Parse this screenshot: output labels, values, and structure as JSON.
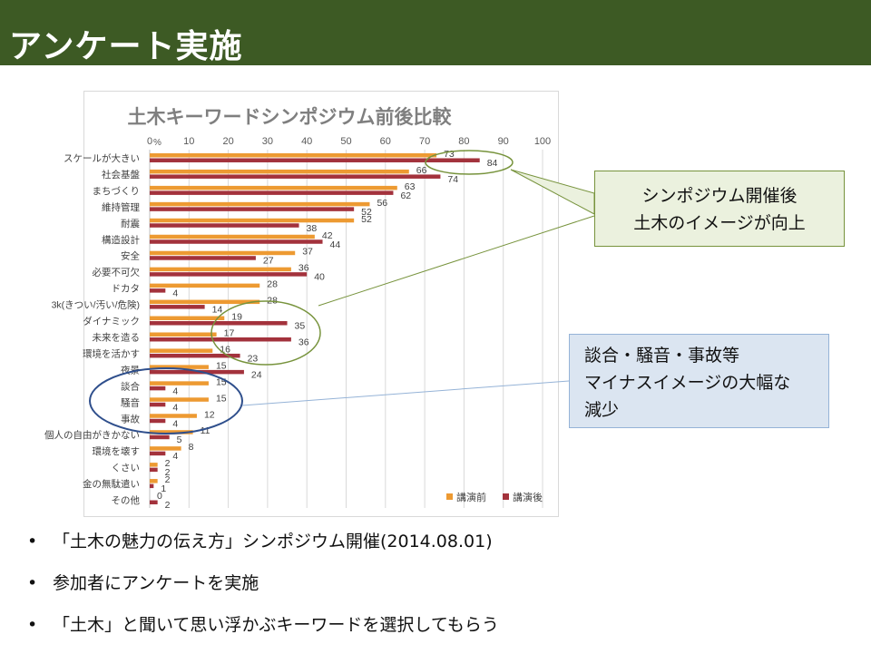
{
  "header": {
    "title": "アンケート実施"
  },
  "chart_data": {
    "type": "bar",
    "orientation": "horizontal",
    "title": "土木キーワードシンポジウム前後比較",
    "x_unit": "%",
    "xlim": [
      0,
      100
    ],
    "x_ticks": [
      "0",
      "10",
      "20",
      "30",
      "40",
      "50",
      "60",
      "70",
      "80",
      "90",
      "100"
    ],
    "grid": true,
    "legend_position": "bottom-right",
    "categories": [
      "スケールが大きい",
      "社会基盤",
      "まちづくり",
      "維持管理",
      "耐震",
      "構造設計",
      "安全",
      "必要不可欠",
      "ドカタ",
      "3k(きつい/汚い/危険)",
      "ダイナミック",
      "未来を造る",
      "環境を活かす",
      "夜景",
      "談合",
      "騒音",
      "事故",
      "個人の自由がきかない",
      "環境を壊す",
      "くさい",
      "金の無駄遣い",
      "その他"
    ],
    "series": [
      {
        "name": "講演前",
        "color": "#ed9a32",
        "values": [
          73,
          66,
          63,
          56,
          52,
          42,
          37,
          36,
          28,
          28,
          19,
          17,
          16,
          15,
          15,
          15,
          12,
          11,
          8,
          2,
          2,
          0
        ]
      },
      {
        "name": "講演後",
        "color": "#a3323c",
        "values": [
          84,
          74,
          62,
          52,
          38,
          44,
          27,
          40,
          4,
          14,
          35,
          36,
          23,
          24,
          4,
          4,
          4,
          5,
          4,
          2,
          1,
          2
        ]
      }
    ]
  },
  "callouts": {
    "positive": {
      "line1": "シンポジウム開催後",
      "line2": "土木のイメージが向上",
      "color": "#77933c"
    },
    "negative": {
      "line1": "談合・騒音・事故等",
      "line2": "マイナスイメージの大幅な",
      "line3": "減少",
      "color": "#2f4f8c"
    }
  },
  "bullets": {
    "symbol": "•",
    "items": [
      "「土木の魅力の伝え方」シンポジウム開催(2014.08.01)",
      "参加者にアンケートを実施",
      "「土木」と聞いて思い浮かぶキーワードを選択してもらう"
    ]
  }
}
